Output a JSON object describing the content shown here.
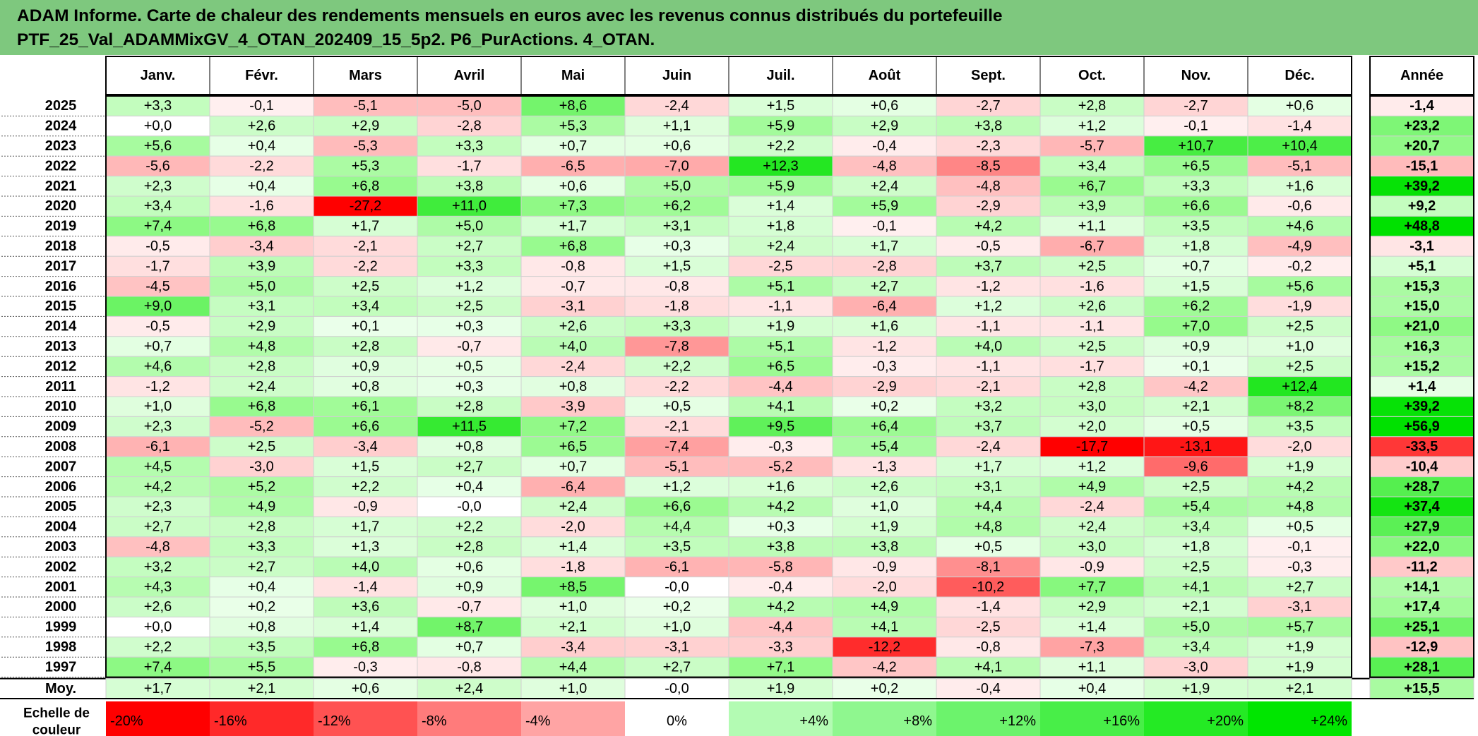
{
  "title": {
    "line1": "ADAM Informe. Carte de chaleur des rendements mensuels en euros avec les revenus connus distribués du portefeuille",
    "line2": "PTF_25_Val_ADAMMixGV_4_OTAN_202409_15_5p2. P6_PurActions. 4_OTAN."
  },
  "chart_data": {
    "type": "heatmap",
    "months": [
      "Janv.",
      "Févr.",
      "Mars",
      "Avril",
      "Mai",
      "Juin",
      "Juil.",
      "Août",
      "Sept.",
      "Oct.",
      "Nov.",
      "Déc."
    ],
    "year_header": "Année",
    "rows": [
      {
        "year": "2025",
        "values": [
          "+3,3",
          "-0,1",
          "-5,1",
          "-5,0",
          "+8,6",
          "-2,4",
          "+1,5",
          "+0,6",
          "-2,7",
          "+2,8",
          "-2,7",
          "+0,6"
        ],
        "annual": "-1,4"
      },
      {
        "year": "2024",
        "values": [
          "+0,0",
          "+2,6",
          "+2,9",
          "-2,8",
          "+5,3",
          "+1,1",
          "+5,9",
          "+2,9",
          "+3,8",
          "+1,2",
          "-0,1",
          "-1,4"
        ],
        "annual": "+23,2"
      },
      {
        "year": "2023",
        "values": [
          "+5,6",
          "+0,4",
          "-5,3",
          "+3,3",
          "+0,7",
          "+0,6",
          "+2,2",
          "-0,4",
          "-2,3",
          "-5,7",
          "+10,7",
          "+10,4"
        ],
        "annual": "+20,7"
      },
      {
        "year": "2022",
        "values": [
          "-5,6",
          "-2,2",
          "+5,3",
          "-1,7",
          "-6,5",
          "-7,0",
          "+12,3",
          "-4,8",
          "-8,5",
          "+3,4",
          "+6,5",
          "-5,1"
        ],
        "annual": "-15,1"
      },
      {
        "year": "2021",
        "values": [
          "+2,3",
          "+0,4",
          "+6,8",
          "+3,8",
          "+0,6",
          "+5,0",
          "+5,9",
          "+2,4",
          "-4,8",
          "+6,7",
          "+3,3",
          "+1,6"
        ],
        "annual": "+39,2"
      },
      {
        "year": "2020",
        "values": [
          "+3,4",
          "-1,6",
          "-27,2",
          "+11,0",
          "+7,3",
          "+6,2",
          "+1,4",
          "+5,9",
          "-2,9",
          "+3,9",
          "+6,6",
          "-0,6"
        ],
        "annual": "+9,2"
      },
      {
        "year": "2019",
        "values": [
          "+7,4",
          "+6,8",
          "+1,7",
          "+5,0",
          "+1,7",
          "+3,1",
          "+1,8",
          "-0,1",
          "+4,2",
          "+1,1",
          "+3,5",
          "+4,6"
        ],
        "annual": "+48,8"
      },
      {
        "year": "2018",
        "values": [
          "-0,5",
          "-3,4",
          "-2,1",
          "+2,7",
          "+6,8",
          "+0,3",
          "+2,4",
          "+1,7",
          "-0,5",
          "-6,7",
          "+1,8",
          "-4,9"
        ],
        "annual": "-3,1"
      },
      {
        "year": "2017",
        "values": [
          "-1,7",
          "+3,9",
          "-2,2",
          "+3,3",
          "-0,8",
          "+1,5",
          "-2,5",
          "-2,8",
          "+3,7",
          "+2,5",
          "+0,7",
          "-0,2"
        ],
        "annual": "+5,1"
      },
      {
        "year": "2016",
        "values": [
          "-4,5",
          "+5,0",
          "+2,5",
          "+1,2",
          "-0,7",
          "-0,8",
          "+5,1",
          "+2,7",
          "-1,2",
          "-1,6",
          "+1,5",
          "+5,6"
        ],
        "annual": "+15,3"
      },
      {
        "year": "2015",
        "values": [
          "+9,0",
          "+3,1",
          "+3,4",
          "+2,5",
          "-3,1",
          "-1,8",
          "-1,1",
          "-6,4",
          "+1,2",
          "+2,6",
          "+6,2",
          "-1,9"
        ],
        "annual": "+15,0"
      },
      {
        "year": "2014",
        "values": [
          "-0,5",
          "+2,9",
          "+0,1",
          "+0,3",
          "+2,6",
          "+3,3",
          "+1,9",
          "+1,6",
          "-1,1",
          "-1,1",
          "+7,0",
          "+2,5"
        ],
        "annual": "+21,0"
      },
      {
        "year": "2013",
        "values": [
          "+0,7",
          "+4,8",
          "+2,8",
          "-0,7",
          "+4,0",
          "-7,8",
          "+5,1",
          "-1,2",
          "+4,0",
          "+2,5",
          "+0,9",
          "+1,0"
        ],
        "annual": "+16,3"
      },
      {
        "year": "2012",
        "values": [
          "+4,6",
          "+2,8",
          "+0,9",
          "+0,5",
          "-2,4",
          "+2,2",
          "+6,5",
          "-0,3",
          "-1,1",
          "-1,7",
          "+0,1",
          "+2,5"
        ],
        "annual": "+15,2"
      },
      {
        "year": "2011",
        "values": [
          "-1,2",
          "+2,4",
          "+0,8",
          "+0,3",
          "+0,8",
          "-2,2",
          "-4,4",
          "-2,9",
          "-2,1",
          "+2,8",
          "-4,2",
          "+12,4"
        ],
        "annual": "+1,4"
      },
      {
        "year": "2010",
        "values": [
          "+1,0",
          "+6,8",
          "+6,1",
          "+2,8",
          "-3,9",
          "+0,5",
          "+4,1",
          "+0,2",
          "+3,2",
          "+3,0",
          "+2,1",
          "+8,2"
        ],
        "annual": "+39,2"
      },
      {
        "year": "2009",
        "values": [
          "+2,3",
          "-5,2",
          "+6,6",
          "+11,5",
          "+7,2",
          "-2,1",
          "+9,5",
          "+6,4",
          "+3,7",
          "+2,0",
          "+0,5",
          "+3,5"
        ],
        "annual": "+56,9"
      },
      {
        "year": "2008",
        "values": [
          "-6,1",
          "+2,5",
          "-3,4",
          "+0,8",
          "+6,5",
          "-7,4",
          "-0,3",
          "+5,4",
          "-2,4",
          "-17,7",
          "-13,1",
          "-2,0"
        ],
        "annual": "-33,5"
      },
      {
        "year": "2007",
        "values": [
          "+4,5",
          "-3,0",
          "+1,5",
          "+2,7",
          "+0,7",
          "-5,1",
          "-5,2",
          "-1,3",
          "+1,7",
          "+1,2",
          "-9,6",
          "+1,9"
        ],
        "annual": "-10,4"
      },
      {
        "year": "2006",
        "values": [
          "+4,2",
          "+5,2",
          "+2,2",
          "+0,4",
          "-6,4",
          "+1,2",
          "+1,6",
          "+2,6",
          "+3,1",
          "+4,9",
          "+2,5",
          "+4,2"
        ],
        "annual": "+28,7"
      },
      {
        "year": "2005",
        "values": [
          "+2,3",
          "+4,9",
          "-0,9",
          "-0,0",
          "+2,4",
          "+6,6",
          "+4,2",
          "+1,0",
          "+4,4",
          "-2,4",
          "+5,4",
          "+4,8"
        ],
        "annual": "+37,4"
      },
      {
        "year": "2004",
        "values": [
          "+2,7",
          "+2,8",
          "+1,7",
          "+2,2",
          "-2,0",
          "+4,4",
          "+0,3",
          "+1,9",
          "+4,8",
          "+2,4",
          "+3,4",
          "+0,5"
        ],
        "annual": "+27,9"
      },
      {
        "year": "2003",
        "values": [
          "-4,8",
          "+3,3",
          "+1,3",
          "+2,8",
          "+1,4",
          "+3,5",
          "+3,8",
          "+3,8",
          "+0,5",
          "+3,0",
          "+1,8",
          "-0,1"
        ],
        "annual": "+22,0"
      },
      {
        "year": "2002",
        "values": [
          "+3,2",
          "+2,7",
          "+4,0",
          "+0,6",
          "-1,8",
          "-6,1",
          "-5,8",
          "-0,9",
          "-8,1",
          "-0,9",
          "+2,5",
          "-0,3"
        ],
        "annual": "-11,2"
      },
      {
        "year": "2001",
        "values": [
          "+4,3",
          "+0,4",
          "-1,4",
          "+0,9",
          "+8,5",
          "-0,0",
          "-0,4",
          "-2,0",
          "-10,2",
          "+7,7",
          "+4,1",
          "+2,7"
        ],
        "annual": "+14,1"
      },
      {
        "year": "2000",
        "values": [
          "+2,6",
          "+0,2",
          "+3,6",
          "-0,7",
          "+1,0",
          "+0,2",
          "+4,2",
          "+4,9",
          "-1,4",
          "+2,9",
          "+2,1",
          "-3,1"
        ],
        "annual": "+17,4"
      },
      {
        "year": "1999",
        "values": [
          "+0,0",
          "+0,8",
          "+1,4",
          "+8,7",
          "+2,1",
          "+1,0",
          "-4,4",
          "+4,1",
          "-2,5",
          "+1,4",
          "+5,0",
          "+5,7"
        ],
        "annual": "+25,1"
      },
      {
        "year": "1998",
        "values": [
          "+2,2",
          "+3,5",
          "+6,8",
          "+0,7",
          "-3,4",
          "-3,1",
          "-3,3",
          "-12,2",
          "-0,8",
          "-7,3",
          "+3,4",
          "+1,9"
        ],
        "annual": "-12,9"
      },
      {
        "year": "1997",
        "values": [
          "+7,4",
          "+5,5",
          "-0,3",
          "-0,8",
          "+4,4",
          "+2,7",
          "+7,1",
          "-4,2",
          "+4,1",
          "+1,1",
          "-3,0",
          "+1,9"
        ],
        "annual": "+28,1"
      }
    ],
    "average": {
      "label": "Moy.",
      "values": [
        "+1,7",
        "+2,1",
        "+0,6",
        "+2,4",
        "+1,0",
        "-0,0",
        "+1,9",
        "+0,2",
        "-0,4",
        "+0,4",
        "+1,9",
        "+2,1"
      ],
      "annual": "+15,5"
    },
    "scale": {
      "label": [
        "Echelle de",
        "couleur"
      ],
      "steps": [
        "-20%",
        "-16%",
        "-12%",
        "-8%",
        "-4%",
        "0%",
        "+4%",
        "+8%",
        "+12%",
        "+16%",
        "+20%",
        "+24%"
      ]
    },
    "colors": {
      "title_bg": "#7ec87e",
      "positive_max": "#00e600",
      "negative_max": "#ff0000",
      "neutral": "#ffffff"
    }
  }
}
